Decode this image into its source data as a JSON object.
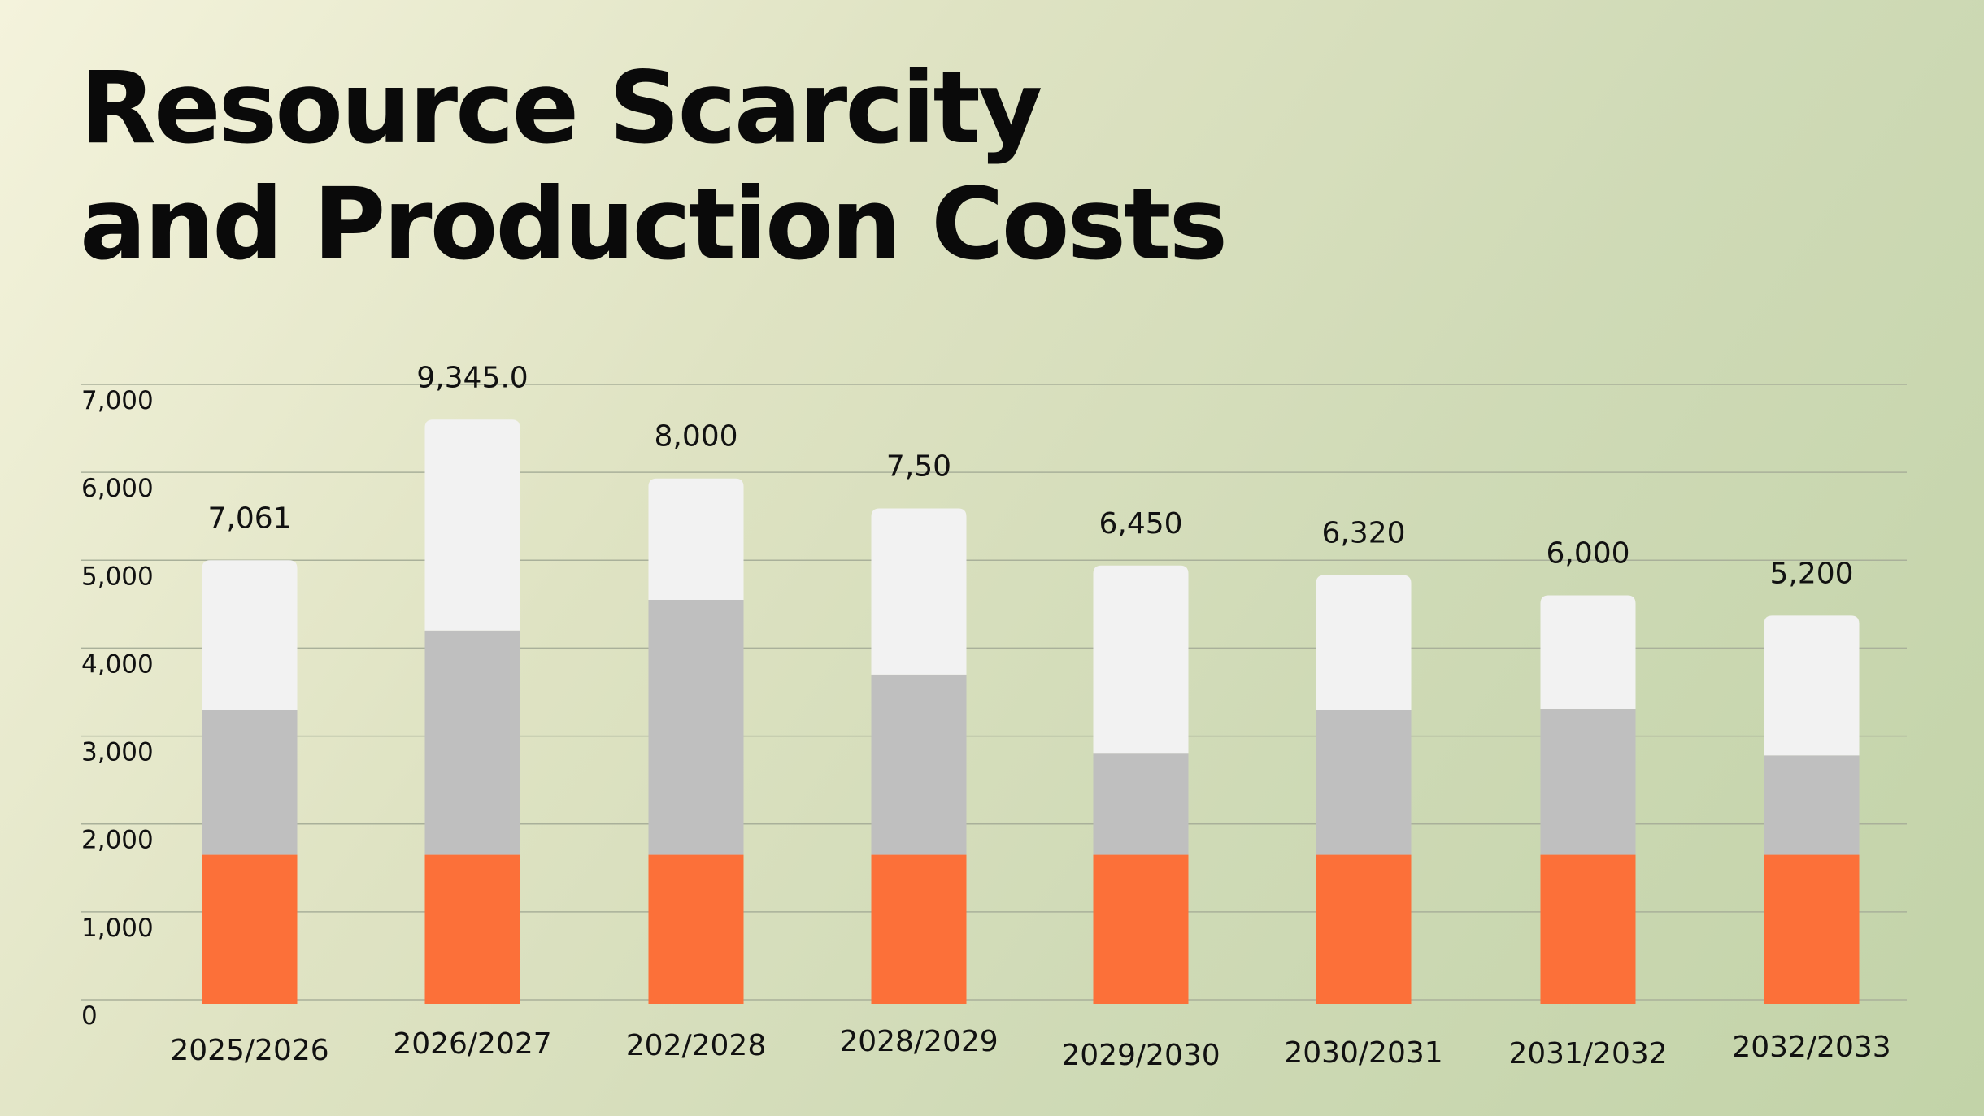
{
  "chart_data": {
    "type": "bar",
    "stacked": true,
    "title": [
      "Resource Scarcity",
      "and Production Costs"
    ],
    "xlabel": "",
    "ylabel": "",
    "ylim": [
      0,
      7000
    ],
    "yticks": [
      "0",
      "1,000",
      "2,000",
      "3,000",
      "4,000",
      "5,000",
      "6,000",
      "7,000"
    ],
    "grid": true,
    "legend": "none",
    "categories": [
      "2025/2026",
      "2026/2027",
      "202/2028",
      "2028/2029",
      "2029/2030",
      "2030/2031",
      "2031/2032",
      "2032/2033"
    ],
    "data_labels": [
      "7,061",
      "9,345.0",
      "8,000",
      "7,50",
      "6,450",
      "6,320",
      "6,000",
      "5,200"
    ],
    "series": [
      {
        "color": "#fc7039",
        "values": [
          1650,
          1650,
          1650,
          1650,
          1650,
          1650,
          1650,
          1650
        ]
      },
      {
        "color": "#bfbfbf",
        "values": [
          1650,
          2550,
          2900,
          2050,
          1150,
          1650,
          1660,
          1130
        ]
      },
      {
        "color": "#f2f2f2",
        "values": [
          1700,
          2400,
          1380,
          1890,
          2140,
          1530,
          1290,
          1590
        ]
      }
    ]
  }
}
